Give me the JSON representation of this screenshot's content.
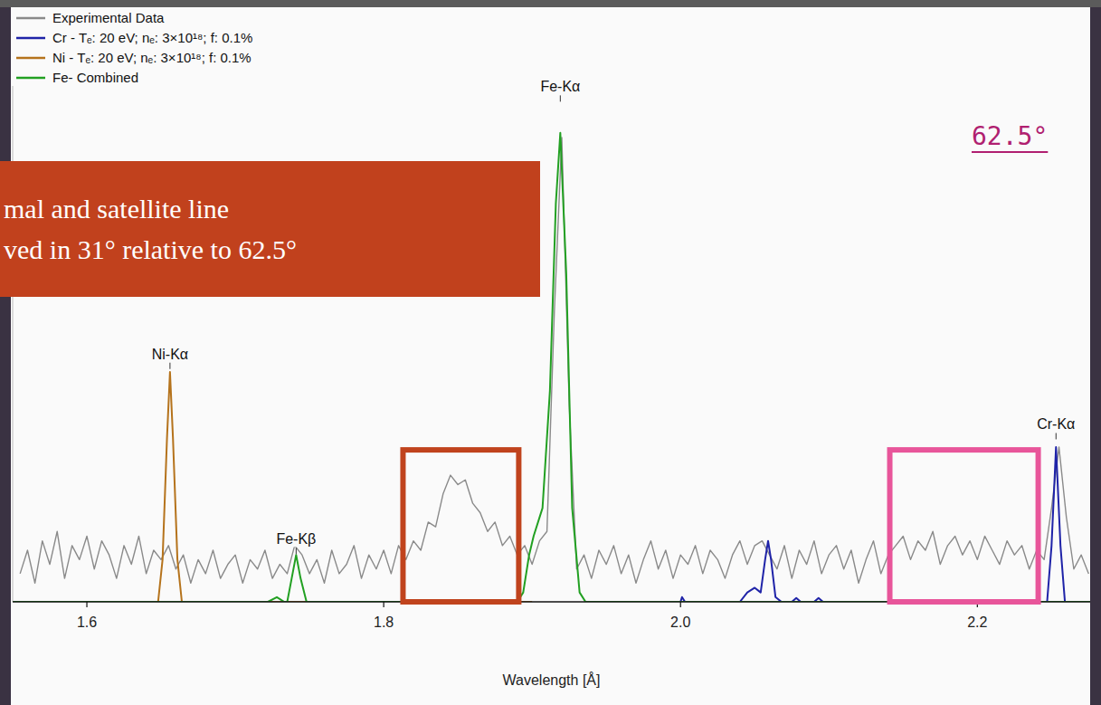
{
  "chart_data": {
    "type": "line",
    "x_label": "Wavelength [Å]",
    "xlim": [
      1.55,
      2.276
    ],
    "xticks": [
      1.6,
      1.8,
      {
        "value": 2.0,
        "label": "2.0"
      },
      2.2
    ],
    "ylim": [
      0,
      1.1
    ],
    "tick_labels": "x",
    "legend": "upper left",
    "series": [
      {
        "name": "Experimental Data",
        "color": "#8a8a8a",
        "x": [
          1.555,
          1.56,
          1.565,
          1.57,
          1.575,
          1.58,
          1.585,
          1.59,
          1.595,
          1.6,
          1.605,
          1.61,
          1.615,
          1.62,
          1.625,
          1.63,
          1.635,
          1.64,
          1.645,
          1.65,
          1.655,
          1.66,
          1.665,
          1.67,
          1.675,
          1.68,
          1.685,
          1.69,
          1.695,
          1.7,
          1.705,
          1.71,
          1.715,
          1.72,
          1.725,
          1.73,
          1.735,
          1.74,
          1.745,
          1.75,
          1.755,
          1.76,
          1.765,
          1.77,
          1.775,
          1.78,
          1.785,
          1.79,
          1.795,
          1.8,
          1.805,
          1.81,
          1.815,
          1.82,
          1.825,
          1.83,
          1.835,
          1.84,
          1.845,
          1.85,
          1.855,
          1.86,
          1.865,
          1.87,
          1.875,
          1.88,
          1.885,
          1.89,
          1.895,
          1.9,
          1.905,
          1.91,
          1.915,
          1.92,
          1.925,
          1.93,
          1.935,
          1.94,
          1.945,
          1.95,
          1.955,
          1.96,
          1.965,
          1.97,
          1.975,
          1.98,
          1.985,
          1.99,
          1.995,
          2.0,
          2.005,
          2.01,
          2.015,
          2.02,
          2.025,
          2.03,
          2.035,
          2.04,
          2.045,
          2.05,
          2.055,
          2.06,
          2.065,
          2.07,
          2.075,
          2.08,
          2.085,
          2.09,
          2.095,
          2.1,
          2.105,
          2.11,
          2.115,
          2.12,
          2.125,
          2.13,
          2.135,
          2.14,
          2.145,
          2.15,
          2.155,
          2.16,
          2.165,
          2.17,
          2.175,
          2.18,
          2.185,
          2.19,
          2.195,
          2.2,
          2.205,
          2.21,
          2.215,
          2.22,
          2.225,
          2.23,
          2.235,
          2.24,
          2.245,
          2.25,
          2.255,
          2.26,
          2.265,
          2.27,
          2.275
        ],
        "values": [
          0.06,
          0.11,
          0.04,
          0.13,
          0.08,
          0.15,
          0.05,
          0.12,
          0.09,
          0.14,
          0.07,
          0.13,
          0.1,
          0.05,
          0.12,
          0.08,
          0.14,
          0.06,
          0.11,
          0.09,
          0.12,
          0.07,
          0.1,
          0.04,
          0.09,
          0.06,
          0.11,
          0.05,
          0.08,
          0.1,
          0.04,
          0.09,
          0.07,
          0.11,
          0.05,
          0.08,
          0.06,
          0.12,
          0.1,
          0.06,
          0.09,
          0.04,
          0.11,
          0.06,
          0.08,
          0.12,
          0.05,
          0.1,
          0.07,
          0.11,
          0.06,
          0.12,
          0.09,
          0.13,
          0.11,
          0.17,
          0.16,
          0.23,
          0.27,
          0.25,
          0.26,
          0.21,
          0.19,
          0.15,
          0.17,
          0.12,
          0.14,
          0.1,
          0.12,
          0.08,
          0.13,
          0.15,
          0.62,
          0.99,
          0.42,
          0.07,
          0.1,
          0.05,
          0.11,
          0.08,
          0.12,
          0.06,
          0.1,
          0.04,
          0.09,
          0.13,
          0.07,
          0.11,
          0.05,
          0.1,
          0.08,
          0.12,
          0.06,
          0.11,
          0.09,
          0.05,
          0.1,
          0.13,
          0.08,
          0.12,
          0.13,
          0.1,
          0.07,
          0.12,
          0.05,
          0.11,
          0.08,
          0.13,
          0.06,
          0.1,
          0.12,
          0.07,
          0.11,
          0.04,
          0.09,
          0.13,
          0.06,
          0.1,
          0.12,
          0.14,
          0.09,
          0.13,
          0.11,
          0.15,
          0.08,
          0.12,
          0.14,
          0.1,
          0.13,
          0.09,
          0.14,
          0.11,
          0.08,
          0.13,
          0.1,
          0.12,
          0.07,
          0.11,
          0.09,
          0.2,
          0.33,
          0.18,
          0.07,
          0.1,
          0.06
        ]
      },
      {
        "name": "Cr - Tₑ: 20 eV; nₑ: 3×10¹⁸; f: 0.1%",
        "color": "#1f23a8",
        "x": [
          2.0,
          2.001,
          2.003,
          2.005,
          2.04,
          2.045,
          2.05,
          2.054,
          2.057,
          2.059,
          2.061,
          2.064,
          2.068,
          2.075,
          2.078,
          2.081,
          2.09,
          2.093,
          2.096,
          2.24,
          2.247,
          2.25,
          2.253,
          2.256,
          2.259,
          2.265,
          2.276
        ],
        "values": [
          0,
          0.01,
          0,
          0,
          0,
          0.02,
          0.03,
          0.02,
          0.09,
          0.13,
          0.09,
          0.01,
          0,
          0,
          0.008,
          0,
          0,
          0.008,
          0,
          0,
          0,
          0.12,
          0.33,
          0.12,
          0,
          0,
          0
        ]
      },
      {
        "name": "Ni - Tₑ: 20 eV; nₑ: 3×10¹⁸; f: 0.1%",
        "color": "#b5731c",
        "x": [
          1.55,
          1.648,
          1.651,
          1.654,
          1.656,
          1.658,
          1.661,
          1.664,
          1.9
        ],
        "values": [
          0,
          0,
          0.09,
          0.35,
          0.49,
          0.35,
          0.09,
          0,
          0
        ]
      },
      {
        "name": "Fe- Combined",
        "color": "#22a022",
        "x": [
          1.55,
          1.722,
          1.728,
          1.733,
          1.735,
          1.738,
          1.741,
          1.744,
          1.748,
          1.89,
          1.894,
          1.898,
          1.901,
          1.907,
          1.912,
          1.916,
          1.919,
          1.923,
          1.927,
          1.932,
          1.936,
          2.276
        ],
        "values": [
          0,
          0,
          0.01,
          0,
          0,
          0.05,
          0.1,
          0.05,
          0,
          0,
          0.02,
          0.1,
          0.14,
          0.2,
          0.45,
          0.85,
          1.0,
          0.7,
          0.2,
          0.02,
          0,
          0
        ]
      }
    ],
    "annotations": [
      {
        "text": "Ni-Kα",
        "x": 1.656,
        "y": 0.51
      },
      {
        "text": "Fe-Kβ",
        "x": 1.741,
        "y": 0.115
      },
      {
        "text": "Fe-Kα",
        "x": 1.919,
        "y": 1.08
      },
      {
        "text": "Cr-Kα",
        "x": 2.253,
        "y": 0.36
      }
    ],
    "highlights": [
      {
        "x": [
          1.813,
          1.891
        ],
        "y": [
          0,
          0.324
        ],
        "color": "#c0431d"
      },
      {
        "x": [
          2.141,
          2.241
        ],
        "y": [
          0,
          0.324
        ],
        "color": "#e8559a"
      }
    ],
    "banner": {
      "lines": [
        "mal and satellite line",
        "ved in 31° relative to 62.5°"
      ],
      "color": "#c1411d"
    },
    "angle_label": {
      "text": "62.5°",
      "color": "#b01f70"
    }
  }
}
